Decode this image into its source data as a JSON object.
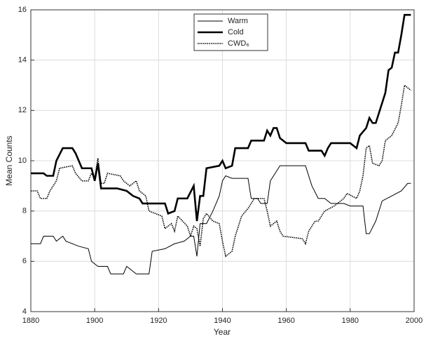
{
  "chart_data": {
    "type": "line",
    "x_label": "Year",
    "y_label": "Mean Counts",
    "xlim": [
      1880,
      2000
    ],
    "xticks": [
      1880,
      1900,
      1920,
      1940,
      1960,
      1980,
      2000
    ],
    "ylim": [
      4,
      16
    ],
    "yticks": [
      4,
      6,
      8,
      10,
      12,
      14,
      16
    ],
    "grid": true,
    "legend": "top",
    "series": [
      {
        "name": "Warm",
        "color": "#000000",
        "style": "thin",
        "x": [
          1880,
          1883,
          1884,
          1887,
          1888,
          1890,
          1891,
          1895,
          1898,
          1899,
          1901,
          1904,
          1905,
          1909,
          1910,
          1912,
          1913,
          1917,
          1918,
          1922,
          1925,
          1928,
          1930,
          1931,
          1932,
          1933,
          1935,
          1937,
          1939,
          1940,
          1941,
          1943,
          1948,
          1949,
          1951,
          1952,
          1954,
          1955,
          1957,
          1958,
          1966,
          1968,
          1970,
          1972,
          1974,
          1978,
          1980,
          1984,
          1985,
          1986,
          1988,
          1990,
          1993,
          1996,
          1998,
          1999
        ],
        "values": [
          6.7,
          6.7,
          7.0,
          7.0,
          6.8,
          7.0,
          6.8,
          6.6,
          6.5,
          6.0,
          5.8,
          5.8,
          5.5,
          5.5,
          5.8,
          5.6,
          5.5,
          5.5,
          6.4,
          6.5,
          6.7,
          6.8,
          7.0,
          7.0,
          6.2,
          7.5,
          7.5,
          8.0,
          8.6,
          9.2,
          9.4,
          9.3,
          9.3,
          8.5,
          8.5,
          8.3,
          8.3,
          9.2,
          9.6,
          9.8,
          9.8,
          9.0,
          8.5,
          8.5,
          8.3,
          8.3,
          8.2,
          8.2,
          7.1,
          7.1,
          7.6,
          8.4,
          8.6,
          8.8,
          9.1,
          9.1
        ]
      },
      {
        "name": "Cold",
        "color": "#000000",
        "style": "thick",
        "x": [
          1880,
          1884,
          1885,
          1887,
          1888,
          1890,
          1893,
          1894,
          1896,
          1899,
          1900,
          1901,
          1902,
          1907,
          1910,
          1912,
          1914,
          1915,
          1922,
          1923,
          1925,
          1926,
          1929,
          1931,
          1932,
          1933,
          1934,
          1935,
          1939,
          1940,
          1941,
          1943,
          1944,
          1948,
          1949,
          1953,
          1954,
          1955,
          1956,
          1957,
          1958,
          1960,
          1966,
          1967,
          1971,
          1972,
          1973,
          1974,
          1980,
          1982,
          1983,
          1985,
          1986,
          1987,
          1988,
          1990,
          1991,
          1992,
          1993,
          1994,
          1995,
          1996,
          1997,
          1999
        ],
        "values": [
          9.5,
          9.5,
          9.4,
          9.4,
          10.0,
          10.5,
          10.5,
          10.3,
          9.7,
          9.7,
          9.2,
          9.9,
          8.9,
          8.9,
          8.8,
          8.6,
          8.5,
          8.3,
          8.3,
          7.9,
          8.0,
          8.5,
          8.5,
          9.0,
          7.6,
          8.6,
          8.6,
          9.7,
          9.8,
          10.0,
          9.7,
          9.8,
          10.5,
          10.5,
          10.8,
          10.8,
          11.2,
          11.0,
          11.3,
          11.3,
          10.9,
          10.7,
          10.7,
          10.4,
          10.4,
          10.2,
          10.5,
          10.7,
          10.7,
          10.5,
          11.0,
          11.3,
          11.7,
          11.5,
          11.5,
          12.3,
          12.7,
          13.6,
          13.7,
          14.3,
          14.3,
          15.0,
          15.8,
          15.8
        ]
      },
      {
        "name": "CWD₆",
        "color": "#000000",
        "style": "dotted",
        "x": [
          1880,
          1882,
          1883,
          1885,
          1886,
          1888,
          1889,
          1893,
          1894,
          1896,
          1898,
          1899,
          1900,
          1901,
          1902,
          1903,
          1904,
          1908,
          1909,
          1911,
          1913,
          1914,
          1916,
          1917,
          1919,
          1921,
          1922,
          1924,
          1925,
          1926,
          1929,
          1930,
          1931,
          1932,
          1933,
          1934,
          1935,
          1937,
          1939,
          1940,
          1941,
          1943,
          1944,
          1946,
          1948,
          1950,
          1953,
          1954,
          1955,
          1957,
          1958,
          1959,
          1965,
          1966,
          1967,
          1969,
          1970,
          1972,
          1975,
          1978,
          1979,
          1982,
          1983,
          1984,
          1985,
          1986,
          1987,
          1989,
          1990,
          1991,
          1993,
          1995,
          1996,
          1997,
          1998,
          1999
        ],
        "values": [
          8.8,
          8.8,
          8.5,
          8.5,
          8.8,
          9.2,
          9.7,
          9.8,
          9.5,
          9.2,
          9.2,
          9.5,
          9.3,
          10.1,
          9.1,
          9.1,
          9.5,
          9.4,
          9.2,
          9.0,
          9.2,
          8.8,
          8.6,
          8.0,
          7.9,
          7.8,
          7.3,
          7.5,
          7.2,
          7.8,
          7.4,
          7.0,
          7.4,
          7.3,
          6.6,
          7.7,
          7.9,
          7.6,
          7.5,
          6.8,
          6.2,
          6.4,
          7.0,
          7.8,
          8.1,
          8.5,
          8.5,
          8.0,
          7.4,
          7.6,
          7.2,
          7.0,
          6.9,
          6.7,
          7.2,
          7.6,
          7.6,
          8.0,
          8.2,
          8.5,
          8.7,
          8.5,
          8.8,
          9.4,
          10.5,
          10.6,
          9.9,
          9.8,
          10.0,
          10.8,
          11.0,
          11.5,
          12.2,
          13.0,
          12.9,
          12.8
        ]
      }
    ]
  }
}
